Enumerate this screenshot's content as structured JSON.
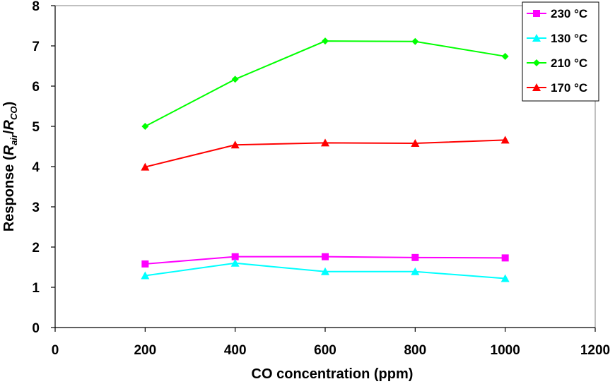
{
  "chart_data": {
    "type": "line",
    "xlabel": "CO concentration (ppm)",
    "ylabel": {
      "prefix": "Response (",
      "r1": "R",
      "sub1": "air",
      "slash": "/",
      "r2": "R",
      "sub2": "CO",
      "suffix": ")"
    },
    "xlim": [
      0,
      1200
    ],
    "ylim": [
      0,
      8
    ],
    "xticks": [
      "0",
      "200",
      "400",
      "600",
      "800",
      "1000",
      "1200"
    ],
    "yticks": [
      "0",
      "1",
      "2",
      "3",
      "4",
      "5",
      "6",
      "7",
      "8"
    ],
    "x": [
      200,
      400,
      600,
      800,
      1000
    ],
    "series": [
      {
        "name": "230 °C",
        "color": "#ff00ff",
        "marker": "square",
        "values": [
          1.58,
          1.76,
          1.76,
          1.74,
          1.73
        ]
      },
      {
        "name": "130 °C",
        "color": "#00ffff",
        "marker": "triangle",
        "values": [
          1.29,
          1.6,
          1.39,
          1.39,
          1.22
        ]
      },
      {
        "name": "210 °C",
        "color": "#00ff00",
        "marker": "diamond",
        "values": [
          5.0,
          6.17,
          7.12,
          7.11,
          6.74
        ]
      },
      {
        "name": "170 °C",
        "color": "#ff0000",
        "marker": "triangle",
        "values": [
          3.99,
          4.54,
          4.59,
          4.58,
          4.66
        ]
      }
    ],
    "legend_position": "top-right",
    "grid": false
  }
}
